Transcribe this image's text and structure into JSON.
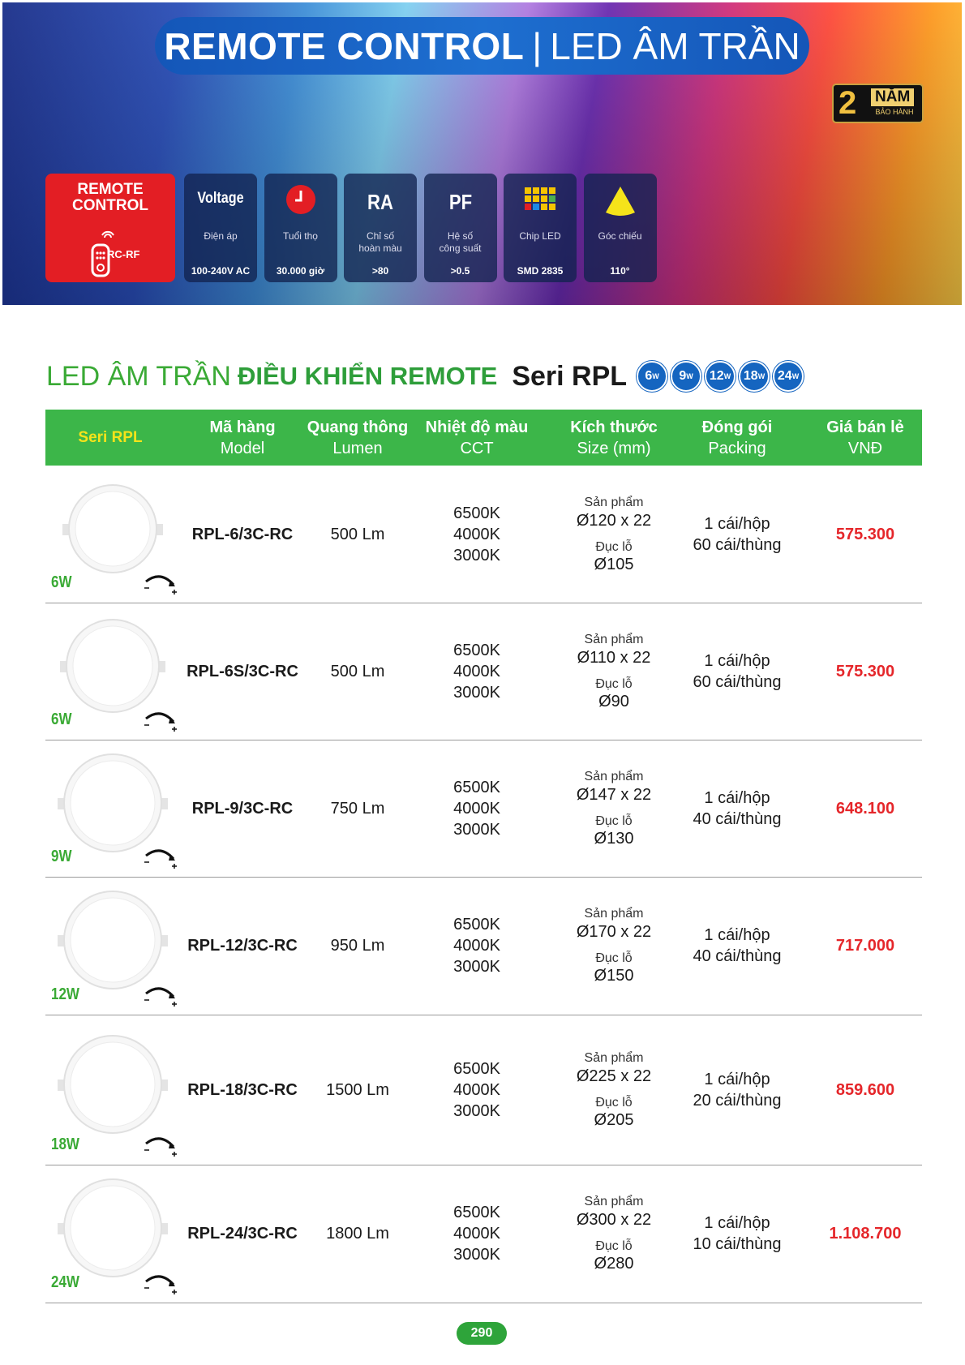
{
  "banner": {
    "title_bold": "REMOTE CONTROL",
    "divider": "|",
    "title_light": "LED ÂM TRẦN",
    "warranty": {
      "number": "2",
      "unit": "NĂM",
      "label": "BẢO HÀNH"
    }
  },
  "remote": {
    "title": "REMOTE CONTROL",
    "model": "RC-RF"
  },
  "features": [
    {
      "icon_text": "Voltage",
      "label": [
        "Điện áp"
      ],
      "value": "100-240V AC"
    },
    {
      "label": [
        "Tuổi thọ"
      ],
      "value": "30.000 giờ"
    },
    {
      "icon_text": "RA",
      "label": [
        "Chỉ số",
        "hoàn màu"
      ],
      "value": ">80"
    },
    {
      "icon_text": "PF",
      "label": [
        "Hệ số",
        "công suất"
      ],
      "value": ">0.5"
    },
    {
      "label": [
        "Chip LED"
      ],
      "value": "SMD 2835"
    },
    {
      "label": [
        "Góc chiếu"
      ],
      "value": "110°"
    }
  ],
  "section": {
    "light": "LED ÂM TRẦN",
    "bold": "ĐIỀU KHIỂN REMOTE",
    "series": "Seri RPL",
    "badges": [
      "6",
      "9",
      "12",
      "18",
      "24"
    ],
    "badge_unit": "W"
  },
  "table": {
    "columns": [
      {
        "title": "Seri RPL"
      },
      {
        "title": "Mã hàng",
        "sub": "Model"
      },
      {
        "title": "Quang thông",
        "sub": "Lumen"
      },
      {
        "title": "Nhiệt độ màu",
        "sub": "CCT"
      },
      {
        "title": "Kích thước",
        "sub": "Size (mm)"
      },
      {
        "title": "Đóng gói",
        "sub": "Packing"
      },
      {
        "title": "Giá bán lẻ",
        "sub": "VNĐ"
      }
    ],
    "rows": [
      {
        "power": "6W",
        "model": "RPL-6/3C-RC",
        "lumen": "500 Lm",
        "cct": [
          "6500K",
          "4000K",
          "3000K"
        ],
        "size_label": "Sản phẩm",
        "size": "Ø120 x 22",
        "cutout_label": "Đục lỗ",
        "cutout": "Ø105",
        "packing": [
          "1 cái/hộp",
          "60 cái/thùng"
        ],
        "price": "575.300"
      },
      {
        "power": "6W",
        "model": "RPL-6S/3C-RC",
        "lumen": "500 Lm",
        "cct": [
          "6500K",
          "4000K",
          "3000K"
        ],
        "size_label": "Sản phẩm",
        "size": "Ø110 x 22",
        "cutout_label": "Đục lỗ",
        "cutout": "Ø90",
        "packing": [
          "1 cái/hộp",
          "60 cái/thùng"
        ],
        "price": "575.300"
      },
      {
        "power": "9W",
        "model": "RPL-9/3C-RC",
        "lumen": "750 Lm",
        "cct": [
          "6500K",
          "4000K",
          "3000K"
        ],
        "size_label": "Sản phẩm",
        "size": "Ø147 x 22",
        "cutout_label": "Đục lỗ",
        "cutout": "Ø130",
        "packing": [
          "1 cái/hộp",
          "40 cái/thùng"
        ],
        "price": "648.100"
      },
      {
        "power": "12W",
        "model": "RPL-12/3C-RC",
        "lumen": "950 Lm",
        "cct": [
          "6500K",
          "4000K",
          "3000K"
        ],
        "size_label": "Sản phẩm",
        "size": "Ø170 x 22",
        "cutout_label": "Đục lỗ",
        "cutout": "Ø150",
        "packing": [
          "1 cái/hộp",
          "40 cái/thùng"
        ],
        "price": "717.000"
      },
      {
        "power": "18W",
        "model": "RPL-18/3C-RC",
        "lumen": "1500 Lm",
        "cct": [
          "6500K",
          "4000K",
          "3000K"
        ],
        "size_label": "Sản phẩm",
        "size": "Ø225 x 22",
        "cutout_label": "Đục lỗ",
        "cutout": "Ø205",
        "packing": [
          "1 cái/hộp",
          "20 cái/thùng"
        ],
        "price": "859.600"
      },
      {
        "power": "24W",
        "model": "RPL-24/3C-RC",
        "lumen": "1800 Lm",
        "cct": [
          "6500K",
          "4000K",
          "3000K"
        ],
        "size_label": "Sản phẩm",
        "size": "Ø300 x 22",
        "cutout_label": "Đục lỗ",
        "cutout": "Ø280",
        "packing": [
          "1 cái/hộp",
          "10 cái/thùng"
        ],
        "price": "1.108.700"
      }
    ]
  },
  "page_number": "290"
}
